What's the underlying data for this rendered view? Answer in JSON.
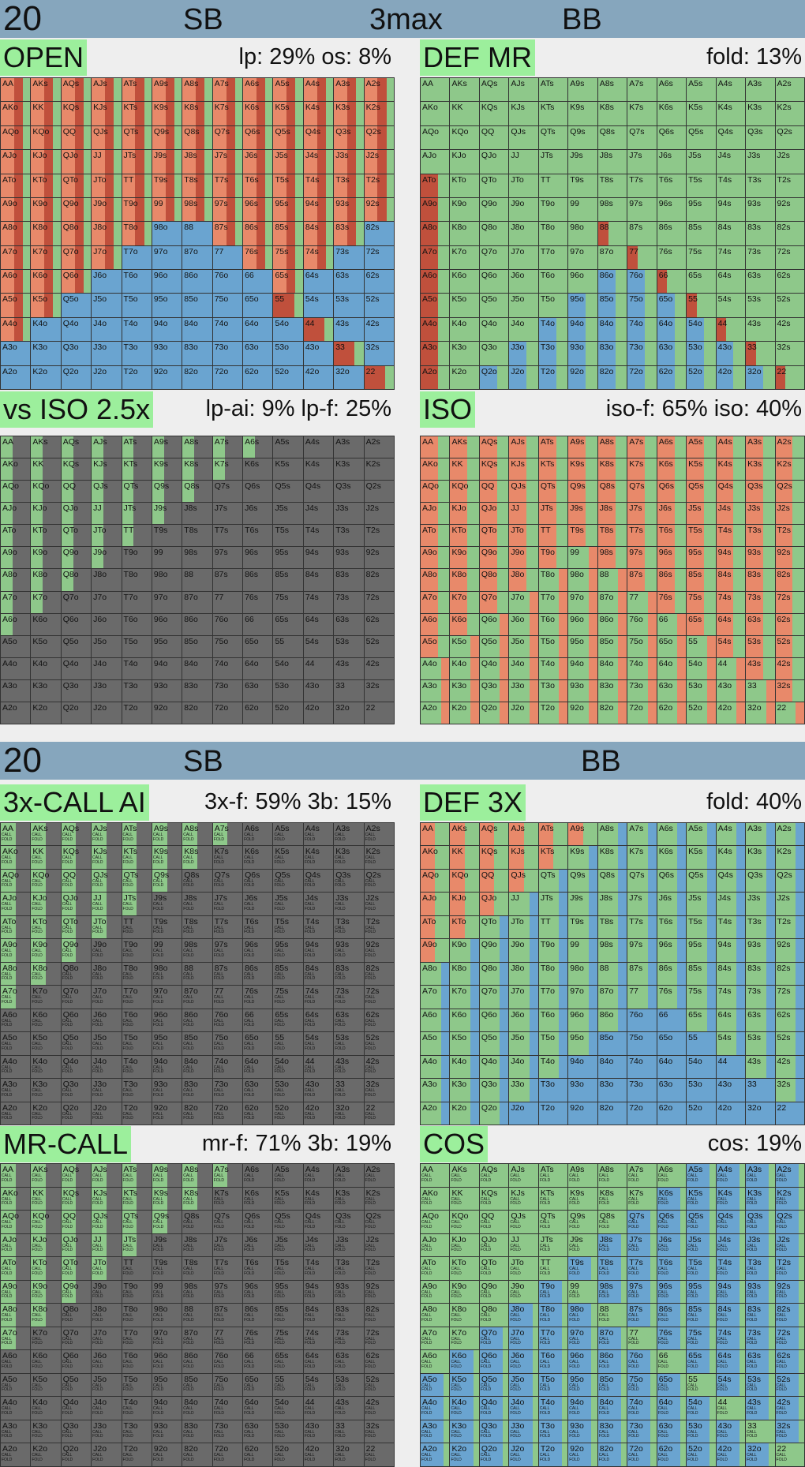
{
  "top_band": {
    "num": "20",
    "pos1": "SB",
    "mode": "3max",
    "pos2": "BB"
  },
  "mid_band": {
    "num": "20",
    "pos1": "SB",
    "pos2": "BB"
  },
  "panels": [
    {
      "id": "open",
      "tag": "OPEN",
      "stat": "lp: 29%  os: 8%"
    },
    {
      "id": "defmr",
      "tag": "DEF MR",
      "stat": "fold: 13%"
    },
    {
      "id": "vsiso",
      "tag": "vs ISO 2.5x",
      "stat": "lp-ai: 9%  lp-f: 25%"
    },
    {
      "id": "iso",
      "tag": "ISO",
      "stat": "iso-f: 65%  iso: 40%"
    },
    {
      "id": "call3x",
      "tag": "3x-CALL AI",
      "stat": "3x-f: 59%  3b: 15%"
    },
    {
      "id": "def3x",
      "tag": "DEF 3X",
      "stat": "fold: 40%"
    },
    {
      "id": "mrcall",
      "tag": "MR-CALL",
      "stat": "mr-f: 71%  3b: 19%"
    },
    {
      "id": "cos",
      "tag": "COS",
      "stat": "cos: 19%"
    }
  ],
  "ranks": [
    "A",
    "K",
    "Q",
    "J",
    "T",
    "9",
    "8",
    "7",
    "6",
    "5",
    "4",
    "3",
    "2"
  ],
  "colors": {
    "raise": "#e8896a",
    "allin": "#c0503c",
    "call": "#8ec88a",
    "fold": "#6aa4d0",
    "dark": "#6a6a6a",
    "grey": "#9a9a9a"
  },
  "cell_labels": {
    "call": "CALL",
    "fold": "FOLD"
  }
}
